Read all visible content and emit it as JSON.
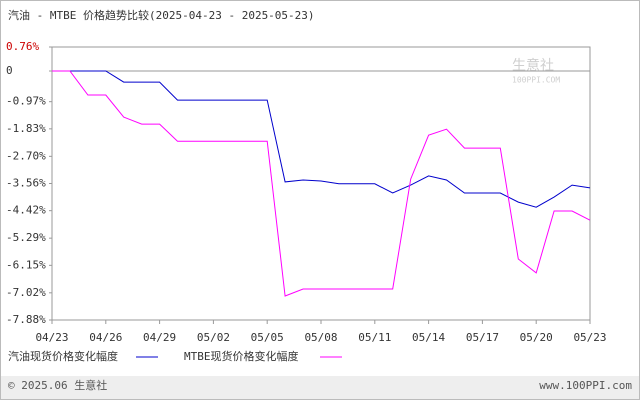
{
  "chart_data": {
    "type": "line",
    "title": "汽油 - MTBE 价格趋势比较(2025-04-23 - 2025-05-23)",
    "categories": [
      "04/23",
      null,
      null,
      "04/26",
      null,
      null,
      "04/29",
      null,
      null,
      "05/02",
      null,
      null,
      "05/05",
      null,
      null,
      "05/08",
      null,
      null,
      "05/11",
      null,
      null,
      "05/14",
      null,
      null,
      "05/17",
      null,
      null,
      "05/20",
      null,
      null,
      "05/23"
    ],
    "series": [
      {
        "name": "汽油现货价格变化幅度",
        "color": "#0000cc",
        "values": [
          0,
          0,
          0,
          0,
          -0.35,
          -0.35,
          -0.35,
          -0.92,
          -0.92,
          -0.92,
          -0.92,
          -0.92,
          -0.92,
          -3.51,
          -3.45,
          -3.48,
          -3.57,
          -3.57,
          -3.57,
          -3.86,
          -3.61,
          -3.32,
          -3.45,
          -3.86,
          -3.86,
          -3.86,
          -4.15,
          -4.31,
          -3.99,
          -3.61,
          -3.7
        ]
      },
      {
        "name": "MTBE现货价格变化幅度",
        "color": "#ff00ff",
        "values": [
          0,
          0,
          -0.76,
          -0.76,
          -1.46,
          -1.68,
          -1.68,
          -2.22,
          -2.22,
          -2.22,
          -2.22,
          -2.22,
          -2.22,
          -7.12,
          -6.9,
          -6.9,
          -6.9,
          -6.9,
          -6.9,
          -6.9,
          -3.42,
          -2.03,
          -1.84,
          -2.44,
          -2.44,
          -2.44,
          -5.95,
          -6.39,
          -4.43,
          -4.43,
          -4.72
        ]
      }
    ],
    "ylim": [
      -7.88,
      0.76
    ],
    "yticks": [
      {
        "value": 0.76,
        "label": "0.76%"
      },
      0,
      {
        "value": -0.97,
        "label": "-0.97%"
      },
      {
        "value": -1.83,
        "label": "-1.83%"
      },
      {
        "value": -2.7,
        "label": "-2.70%"
      },
      {
        "value": -3.56,
        "label": "-3.56%"
      },
      {
        "value": -4.42,
        "label": "-4.42%"
      },
      {
        "value": -5.29,
        "label": "-5.29%"
      },
      {
        "value": -6.15,
        "label": "-6.15%"
      },
      {
        "value": -7.02,
        "label": "-7.02%"
      },
      {
        "value": -7.88,
        "label": "-7.88%"
      }
    ],
    "watermark": [
      "生意社",
      "100PPI.COM"
    ],
    "footer": [
      "© 2025.06 生意社",
      "www.100PPI.com"
    ]
  }
}
